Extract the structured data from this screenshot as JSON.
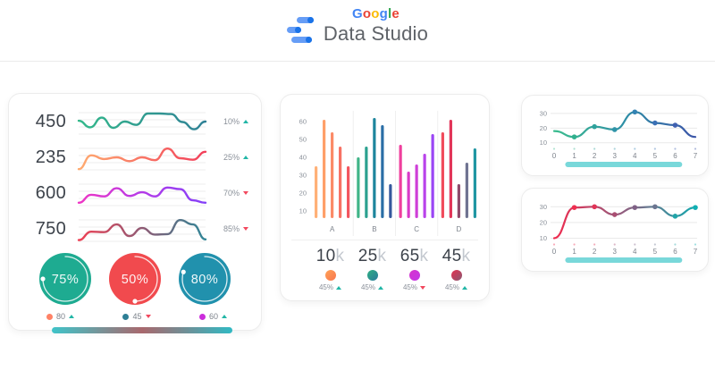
{
  "header": {
    "google_letters": [
      {
        "ch": "G",
        "color": "#4285F4"
      },
      {
        "ch": "o",
        "color": "#EA4335"
      },
      {
        "ch": "o",
        "color": "#FBBC05"
      },
      {
        "ch": "g",
        "color": "#4285F4"
      },
      {
        "ch": "l",
        "color": "#34A853"
      },
      {
        "ch": "e",
        "color": "#EA4335"
      }
    ],
    "product": "Data Studio"
  },
  "colors": {
    "up": "#21b6a6",
    "down": "#f2485e",
    "axis_text": "#8a9099",
    "label_text": "#7d838c",
    "grid": "#ececec",
    "value_text": "#3d434b",
    "muted_text": "#c3c8cf",
    "logo_bar": "#669df6",
    "logo_dot": "#1a73e8",
    "scrollbar": "#79d8da"
  },
  "chart_data": [
    {
      "id": "kpi-sparklines",
      "type": "line",
      "rows": [
        {
          "value": "450",
          "pct": "10%",
          "trend": "up",
          "gradient": [
            "#33b98b",
            "#2e8095"
          ],
          "points": [
            55,
            28,
            68,
            26,
            52,
            38,
            85,
            85,
            83,
            50,
            20,
            52
          ]
        },
        {
          "value": "235",
          "pct": "25%",
          "trend": "up",
          "gradient": [
            "#ffab70",
            "#f23f5a"
          ],
          "points": [
            3,
            60,
            45,
            52,
            36,
            52,
            40,
            88,
            48,
            42,
            75
          ]
        },
        {
          "value": "600",
          "pct": "70%",
          "trend": "down",
          "gradient": [
            "#ef35c4",
            "#b43ae8",
            "#8440f8"
          ],
          "points": [
            12,
            45,
            38,
            72,
            40,
            55,
            38,
            75,
            68,
            22,
            12
          ]
        },
        {
          "value": "750",
          "pct": "85%",
          "trend": "down",
          "gradient": [
            "#ef4054",
            "#8f5a74",
            "#2f8596"
          ],
          "points": [
            5,
            40,
            38,
            70,
            22,
            55,
            28,
            30,
            88,
            70,
            8
          ]
        }
      ]
    },
    {
      "id": "gauges",
      "type": "pie",
      "items": [
        {
          "label": "75%",
          "pct": 75,
          "color": "#1eab91"
        },
        {
          "label": "50%",
          "pct": 50,
          "color": "#f14a4e"
        },
        {
          "label": "80%",
          "pct": 80,
          "color": "#2191ad"
        }
      ],
      "legend": [
        {
          "value": "80",
          "dot": "#ff8266",
          "trend": "up"
        },
        {
          "value": "45",
          "dot": "#2e7f95",
          "trend": "down"
        },
        {
          "value": "60",
          "dot": "#cb2ddb",
          "trend": "up"
        }
      ],
      "range_bar_gradient": [
        "#3fc4c9",
        "#a8686d",
        "#31b9c3"
      ]
    },
    {
      "id": "grouped-bars",
      "type": "bar",
      "yticks": [
        10,
        20,
        30,
        40,
        50,
        60
      ],
      "groups": [
        {
          "label": "A",
          "values": [
            35,
            61,
            54,
            46,
            35
          ],
          "colors": [
            "#ffb077",
            "#ff9f68",
            "#fb8a66",
            "#f77163",
            "#f3555f"
          ]
        },
        {
          "label": "B",
          "values": [
            40,
            46,
            62,
            58,
            25
          ],
          "colors": [
            "#41b588",
            "#2ba18f",
            "#1d859c",
            "#2a6ea6",
            "#35589d"
          ]
        },
        {
          "label": "C",
          "values": [
            47,
            32,
            36,
            42,
            53
          ],
          "colors": [
            "#ef3f9e",
            "#d93bc8",
            "#cf3fd8",
            "#b943ea",
            "#9a45f5"
          ]
        },
        {
          "label": "D",
          "values": [
            54,
            61,
            25,
            37,
            45
          ],
          "colors": [
            "#f14b5b",
            "#e23458",
            "#8f4a6b",
            "#6f7391",
            "#1f96a2"
          ]
        }
      ],
      "stats": [
        {
          "value": "10",
          "suffix": "k",
          "dot": [
            "#ffa257",
            "#f8764f"
          ],
          "pct": "45%",
          "trend": "up"
        },
        {
          "value": "25",
          "suffix": "k",
          "dot": [
            "#2fb083",
            "#2a7a9b"
          ],
          "pct": "45%",
          "trend": "up"
        },
        {
          "value": "65",
          "suffix": "k",
          "dot": [
            "#d633cc",
            "#c436e8"
          ],
          "pct": "45%",
          "trend": "down"
        },
        {
          "value": "45",
          "suffix": "k",
          "dot": [
            "#e43150",
            "#8a5871"
          ],
          "pct": "45%",
          "trend": "up"
        }
      ]
    },
    {
      "id": "line-1",
      "type": "line",
      "x": [
        0,
        1,
        2,
        3,
        4,
        5,
        6,
        7
      ],
      "values": [
        18,
        14,
        21,
        19,
        31,
        23.5,
        22,
        14
      ],
      "yticks": [
        10,
        20,
        30
      ],
      "dot_indices": [
        1,
        2,
        3,
        4,
        5,
        6
      ],
      "gradient": [
        "#3bbc8e",
        "#2e8fa6",
        "#3c55a8"
      ],
      "dot_colors": [
        "#3bbc8e",
        "#30b08d",
        "#2fa29c",
        "#2f94a8",
        "#3383b3",
        "#3a70b5",
        "#3f60b0",
        "#3c55a8"
      ],
      "scrollbar_range": [
        0.55,
        6.35
      ]
    },
    {
      "id": "line-2",
      "type": "line",
      "x": [
        0,
        1,
        2,
        3,
        4,
        5,
        6,
        7
      ],
      "values": [
        10,
        29.5,
        30,
        25,
        29.5,
        30,
        24,
        29.5
      ],
      "yticks": [
        10,
        20,
        30
      ],
      "dot_indices": [
        1,
        2,
        3,
        4,
        5,
        6,
        7
      ],
      "gradient": [
        "#f02a4e",
        "#8f5f80",
        "#12a8ad"
      ],
      "dot_colors": [
        "#f02a4e",
        "#ee2e50",
        "#e03457",
        "#a94e72",
        "#7f6186",
        "#6b7590",
        "#21a4a8",
        "#12afb3"
      ],
      "scrollbar_range": [
        0.55,
        6.35
      ]
    }
  ]
}
